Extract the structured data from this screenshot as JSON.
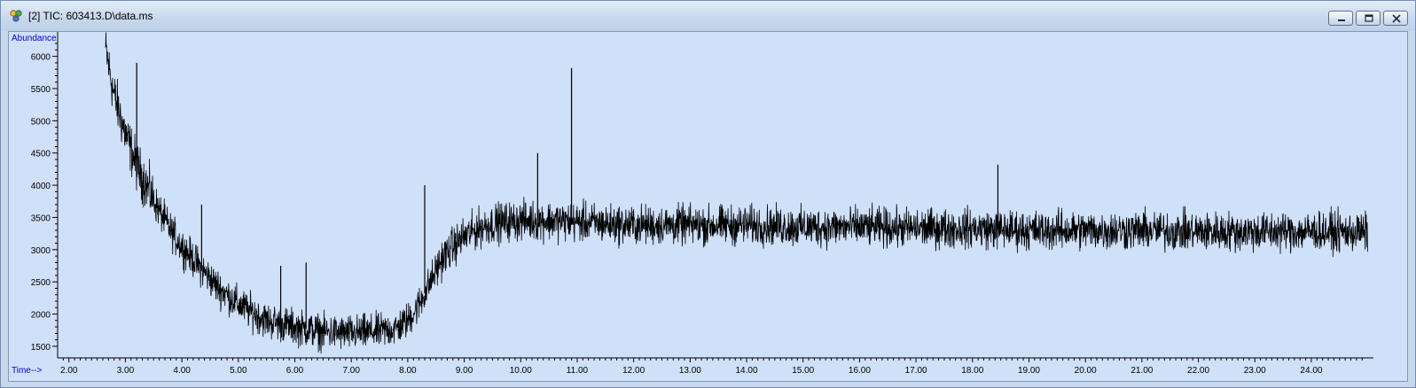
{
  "window": {
    "title": "[2] TIC: 603413.D\\data.ms",
    "icon": "chromatogram-app-icon",
    "buttons": [
      "minimize-icon",
      "maximize-icon",
      "close-icon"
    ]
  },
  "colors": {
    "plot_background": "#cfe0f9",
    "trace": "#000000",
    "axis_label": "#0000cc"
  },
  "chart_data": {
    "type": "line",
    "ylabel": "Abundance",
    "xlabel": "Time-->",
    "xlim": [
      1.8,
      25.1
    ],
    "ylim": [
      1320,
      6380
    ],
    "x_ticks": [
      "2.00",
      "3.00",
      "4.00",
      "5.00",
      "6.00",
      "7.00",
      "8.00",
      "9.00",
      "10.00",
      "11.00",
      "12.00",
      "13.00",
      "14.00",
      "15.00",
      "16.00",
      "17.00",
      "18.00",
      "19.00",
      "20.00",
      "21.00",
      "22.00",
      "23.00",
      "24.00"
    ],
    "y_ticks": [
      "1500",
      "2000",
      "2500",
      "3000",
      "3500",
      "4000",
      "4500",
      "5000",
      "5500",
      "6000"
    ],
    "grid": false,
    "series": [
      {
        "x": [
          2.65,
          2.8,
          3.0,
          3.2,
          3.4,
          3.6,
          3.8,
          4.0,
          4.3,
          4.6,
          5.0,
          5.5,
          6.0,
          6.5,
          7.0,
          7.5,
          7.8,
          8.0,
          8.2,
          8.4,
          8.6,
          8.8,
          9.0,
          9.3,
          9.6,
          10.0,
          10.5,
          11.0,
          11.5,
          12.0,
          13.0,
          14.0,
          15.0,
          16.0,
          17.0,
          18.0,
          19.0,
          20.0,
          21.0,
          22.0,
          23.0,
          24.0,
          25.0
        ],
        "y": [
          6100,
          5400,
          4800,
          4300,
          3950,
          3600,
          3300,
          3050,
          2750,
          2450,
          2150,
          1900,
          1800,
          1720,
          1700,
          1730,
          1780,
          1900,
          2150,
          2500,
          2850,
          3050,
          3200,
          3350,
          3420,
          3450,
          3450,
          3430,
          3400,
          3380,
          3380,
          3380,
          3350,
          3350,
          3330,
          3330,
          3300,
          3300,
          3300,
          3280,
          3280,
          3280,
          3270
        ]
      }
    ],
    "spikes": [
      {
        "x": 3.2,
        "y": 5900
      },
      {
        "x": 4.35,
        "y": 3700
      },
      {
        "x": 5.75,
        "y": 2750
      },
      {
        "x": 6.2,
        "y": 2800
      },
      {
        "x": 8.3,
        "y": 4000
      },
      {
        "x": 10.3,
        "y": 4500
      },
      {
        "x": 10.9,
        "y": 5820
      },
      {
        "x": 18.45,
        "y": 4320
      }
    ]
  }
}
